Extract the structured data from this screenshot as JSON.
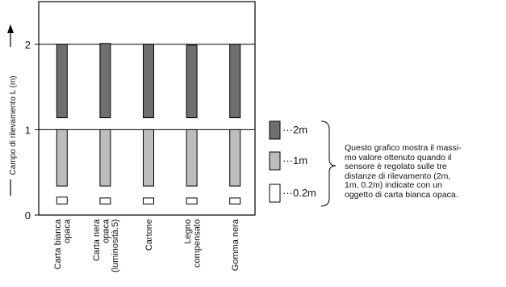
{
  "chart_data": {
    "type": "bar",
    "ylabel": "Campo di rilevamento L (m)",
    "ylim": [
      0,
      2.5
    ],
    "yticks": [
      0,
      1,
      2
    ],
    "yticklabels": [
      "0",
      "1",
      "2"
    ],
    "grid": "horizontal at 1 and 2",
    "categories": [
      [
        "Carta bianca",
        "opaca"
      ],
      [
        "Carta nera",
        "opaca",
        "(luminosità.5)"
      ],
      [
        "Cartone"
      ],
      [
        "Legno",
        "compensato"
      ],
      [
        "Gomma nera"
      ]
    ],
    "series": [
      {
        "name": "2m",
        "color": "#6f6f6f",
        "ranges": [
          [
            1.14,
            2.0
          ],
          [
            1.14,
            2.01
          ],
          [
            1.14,
            2.0
          ],
          [
            1.14,
            1.99
          ],
          [
            1.14,
            2.0
          ]
        ]
      },
      {
        "name": "1m",
        "color": "#bdbdbd",
        "ranges": [
          [
            0.34,
            1.0
          ],
          [
            0.34,
            1.0
          ],
          [
            0.34,
            1.0
          ],
          [
            0.34,
            1.0
          ],
          [
            0.34,
            1.0
          ]
        ]
      },
      {
        "name": "0.2m",
        "color": "#ffffff",
        "ranges": [
          [
            0.13,
            0.21
          ],
          [
            0.13,
            0.2
          ],
          [
            0.13,
            0.2
          ],
          [
            0.13,
            0.2
          ],
          [
            0.13,
            0.2
          ]
        ]
      }
    ],
    "legend": {
      "placement": "right",
      "labels": [
        "···2m",
        "···1m",
        "···0.2m"
      ]
    }
  },
  "note": "Questo grafico mostra il massi-\nmo valore ottenuto quando il\nsensore è regolato sulle tre\ndistanze di rilevamento (2m,\n1m, 0.2m) indicate con un\noggetto di carta bianca opaca."
}
